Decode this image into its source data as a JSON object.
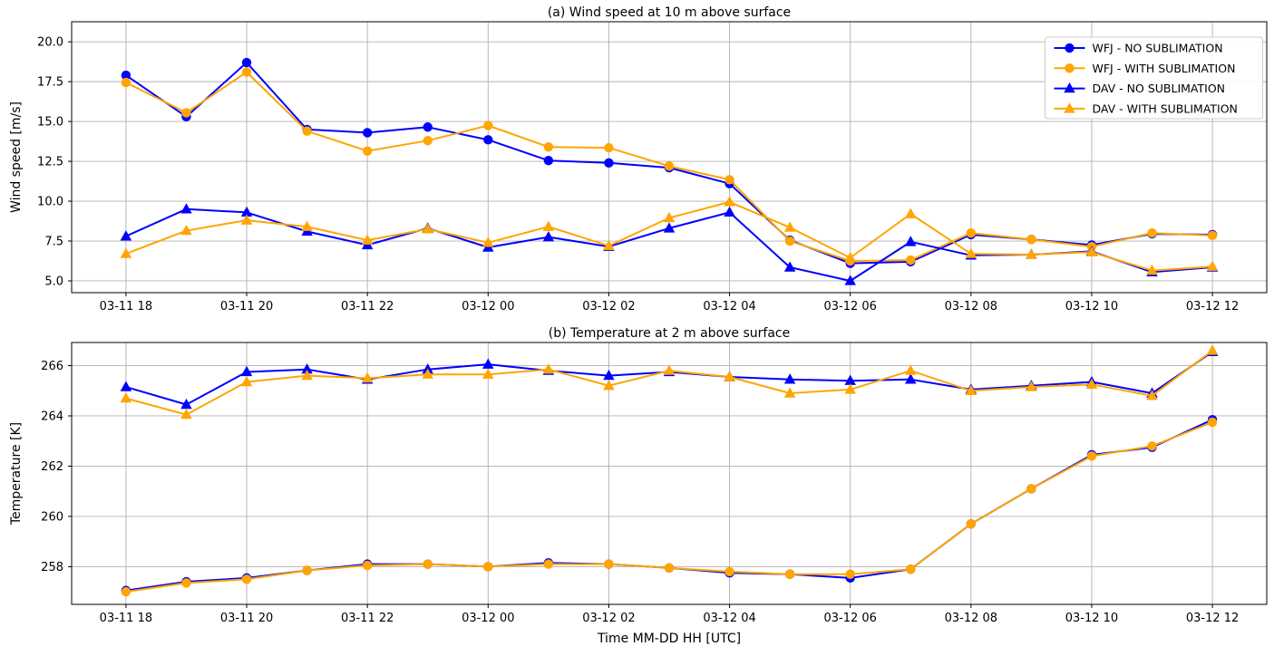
{
  "figure": {
    "background": "#ffffff",
    "grid_color": "#b0b0b0",
    "axis_color": "#000000",
    "text_color": "#000000",
    "xlabel": "Time MM-DD HH [UTC]"
  },
  "chart_data": [
    {
      "type": "line",
      "panel": "a",
      "title": "(a) Wind speed at 10 m above surface",
      "ylabel": "Wind speed [m/s]",
      "xlabel": "",
      "grid": true,
      "legend_position": "upper right",
      "ylim": [
        4.26,
        21.26
      ],
      "yticks": [
        {
          "value": 5.0,
          "label": "5.0"
        },
        {
          "value": 7.5,
          "label": "7.5"
        },
        {
          "value": 10.0,
          "label": "10.0"
        },
        {
          "value": 12.5,
          "label": "12.5"
        },
        {
          "value": 15.0,
          "label": "15.0"
        },
        {
          "value": 17.5,
          "label": "17.5"
        },
        {
          "value": 20.0,
          "label": "20.0"
        }
      ],
      "x": [
        "03-11 18",
        "03-11 19",
        "03-11 20",
        "03-11 21",
        "03-11 22",
        "03-11 23",
        "03-12 00",
        "03-12 01",
        "03-12 02",
        "03-12 03",
        "03-12 04",
        "03-12 05",
        "03-12 06",
        "03-12 07",
        "03-12 08",
        "03-12 09",
        "03-12 10",
        "03-12 11",
        "03-12 12"
      ],
      "x_tick_labels": [
        "03-11 18",
        "03-11 20",
        "03-11 22",
        "03-12 00",
        "03-12 02",
        "03-12 04",
        "03-12 06",
        "03-12 08",
        "03-12 10",
        "03-12 12"
      ],
      "x_tick_indices": [
        0,
        2,
        4,
        6,
        8,
        10,
        12,
        14,
        16,
        18
      ],
      "series": [
        {
          "name": "WFJ - NO SUBLIMATION",
          "color": "#0000ff",
          "marker": "circle",
          "values": [
            17.9,
            15.3,
            18.7,
            14.5,
            14.3,
            14.65,
            13.85,
            12.55,
            12.4,
            12.1,
            11.1,
            7.55,
            6.1,
            6.2,
            7.9,
            7.6,
            7.25,
            7.95,
            7.9
          ]
        },
        {
          "name": "WFJ - WITH SUBLIMATION",
          "color": "#ffa500",
          "marker": "circle",
          "values": [
            17.45,
            15.55,
            18.1,
            14.4,
            13.15,
            13.8,
            14.75,
            13.4,
            13.35,
            12.2,
            11.35,
            7.5,
            6.25,
            6.3,
            8.0,
            7.6,
            7.15,
            8.0,
            7.85
          ]
        },
        {
          "name": "DAV - NO SUBLIMATION",
          "color": "#0000ff",
          "marker": "triangle",
          "values": [
            7.8,
            9.5,
            9.3,
            8.1,
            7.25,
            8.3,
            7.1,
            7.75,
            7.15,
            8.3,
            9.3,
            5.85,
            5.0,
            7.45,
            6.6,
            6.65,
            6.85,
            5.55,
            5.85
          ]
        },
        {
          "name": "DAV - WITH SUBLIMATION",
          "color": "#ffa500",
          "marker": "triangle",
          "values": [
            6.7,
            8.15,
            8.8,
            8.4,
            7.55,
            8.25,
            7.4,
            8.4,
            7.2,
            8.95,
            9.95,
            8.35,
            6.45,
            9.2,
            6.7,
            6.65,
            6.8,
            5.65,
            5.9
          ]
        }
      ]
    },
    {
      "type": "line",
      "panel": "b",
      "title": "(b) Temperature at 2 m above surface",
      "ylabel": "Temperature [K]",
      "xlabel": "Time MM-DD HH [UTC]",
      "grid": true,
      "legend_position": "none",
      "ylim": [
        256.5,
        266.92
      ],
      "yticks": [
        {
          "value": 258,
          "label": "258"
        },
        {
          "value": 260,
          "label": "260"
        },
        {
          "value": 262,
          "label": "262"
        },
        {
          "value": 264,
          "label": "264"
        },
        {
          "value": 266,
          "label": "266"
        }
      ],
      "x": [
        "03-11 18",
        "03-11 19",
        "03-11 20",
        "03-11 21",
        "03-11 22",
        "03-11 23",
        "03-12 00",
        "03-12 01",
        "03-12 02",
        "03-12 03",
        "03-12 04",
        "03-12 05",
        "03-12 06",
        "03-12 07",
        "03-12 08",
        "03-12 09",
        "03-12 10",
        "03-12 11",
        "03-12 12"
      ],
      "x_tick_labels": [
        "03-11 18",
        "03-11 20",
        "03-11 22",
        "03-12 00",
        "03-12 02",
        "03-12 04",
        "03-12 06",
        "03-12 08",
        "03-12 10",
        "03-12 12"
      ],
      "x_tick_indices": [
        0,
        2,
        4,
        6,
        8,
        10,
        12,
        14,
        16,
        18
      ],
      "series": [
        {
          "name": "WFJ - NO SUBLIMATION",
          "color": "#0000ff",
          "marker": "circle",
          "values": [
            257.05,
            257.4,
            257.55,
            257.85,
            258.1,
            258.1,
            258.0,
            258.15,
            258.1,
            257.95,
            257.75,
            257.7,
            257.55,
            257.9,
            259.7,
            261.1,
            262.45,
            262.75,
            263.85
          ]
        },
        {
          "name": "WFJ - WITH SUBLIMATION",
          "color": "#ffa500",
          "marker": "circle",
          "values": [
            257.0,
            257.35,
            257.5,
            257.85,
            258.05,
            258.1,
            258.0,
            258.1,
            258.1,
            257.95,
            257.8,
            257.7,
            257.7,
            257.9,
            259.7,
            261.1,
            262.4,
            262.8,
            263.75
          ]
        },
        {
          "name": "DAV - NO SUBLIMATION",
          "color": "#0000ff",
          "marker": "triangle",
          "values": [
            265.15,
            264.45,
            265.75,
            265.85,
            265.45,
            265.85,
            266.05,
            265.8,
            265.6,
            265.75,
            265.55,
            265.45,
            265.4,
            265.45,
            265.05,
            265.2,
            265.35,
            264.9,
            266.55
          ]
        },
        {
          "name": "DAV - WITH SUBLIMATION",
          "color": "#ffa500",
          "marker": "triangle",
          "values": [
            264.7,
            264.05,
            265.35,
            265.6,
            265.5,
            265.65,
            265.65,
            265.85,
            265.2,
            265.8,
            265.55,
            264.9,
            265.05,
            265.8,
            265.0,
            265.15,
            265.25,
            264.8,
            266.6
          ]
        }
      ]
    }
  ]
}
